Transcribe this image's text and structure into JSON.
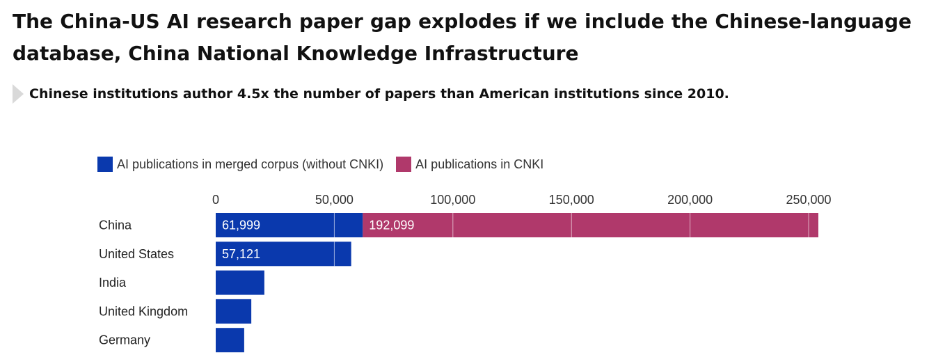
{
  "header": {
    "title": "The China-US AI research paper gap explodes if we include the Chinese-language database, China National Knowledge Infrastructure",
    "subtitle": "Chinese institutions author 4.5x the number of papers than American institutions since 2010."
  },
  "colors": {
    "merged": "#0a39ad",
    "cnki": "#b0396b"
  },
  "chart_data": {
    "type": "bar",
    "orientation": "horizontal",
    "stacked": true,
    "categories": [
      "China",
      "United States",
      "India",
      "United Kingdom",
      "Germany"
    ],
    "series": [
      {
        "name": "AI publications in merged corpus (without CNKI)",
        "values": [
          61999,
          57121,
          20500,
          15000,
          12000
        ],
        "labels": [
          "61,999",
          "57,121",
          "",
          "",
          ""
        ]
      },
      {
        "name": "AI publications in CNKI",
        "values": [
          192099,
          0,
          0,
          0,
          0
        ],
        "labels": [
          "192,099",
          "",
          "",
          "",
          ""
        ]
      }
    ],
    "xlim": [
      0,
      254098
    ],
    "xticks": [
      0,
      50000,
      100000,
      150000,
      200000,
      250000
    ],
    "xtick_labels": [
      "0",
      "50,000",
      "100,000",
      "150,000",
      "200,000",
      "250,000"
    ],
    "grid": true,
    "legend_position": "top-left"
  }
}
